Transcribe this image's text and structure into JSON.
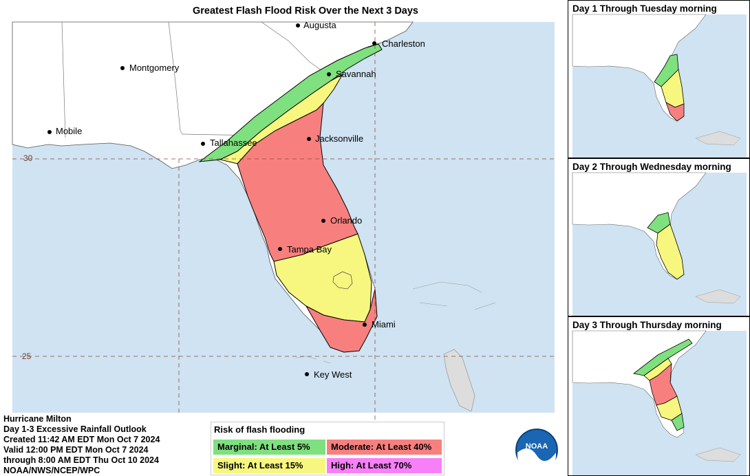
{
  "main_map": {
    "title": "Greatest Flash Flood Risk Over the Next 3 Days",
    "cities": [
      {
        "name": "Augusta"
      },
      {
        "name": "Charleston"
      },
      {
        "name": "Montgomery"
      },
      {
        "name": "Savannah"
      },
      {
        "name": "Mobile"
      },
      {
        "name": "Tallahassee"
      },
      {
        "name": "Jacksonville"
      },
      {
        "name": "Orlando"
      },
      {
        "name": "Tampa Bay"
      },
      {
        "name": "Miami"
      },
      {
        "name": "Key West"
      }
    ],
    "lat_labels": [
      "30",
      "25"
    ]
  },
  "info": {
    "line1": "Hurricane Milton",
    "line2": "Day 1-3 Excessive Rainfall Outlook",
    "line3": "Created 11:42 AM EDT Mon Oct 7 2024",
    "line4": "Valid 12:00 PM EDT Mon Oct 7 2024",
    "line5": "through 8:00 AM EDT Thu Oct 10 2024",
    "line6": "NOAA/NWS/NCEP/WPC"
  },
  "legend": {
    "title": "Risk of flash flooding",
    "marginal": "Marginal: At Least 5%",
    "moderate": "Moderate: At Least 40%",
    "slight": "Slight: At Least 15%",
    "high": "High: At Least 70%",
    "colors": {
      "marginal": "#7fe07f",
      "slight": "#f7f77f",
      "moderate": "#f7807f",
      "high": "#f77ff7",
      "ocean": "#cfe3f2",
      "land": "#ffffff"
    }
  },
  "logo": "NOAA",
  "side_panels": [
    {
      "title": "Day 1 Through Tuesday morning"
    },
    {
      "title": "Day 2 Through Wednesday morning"
    },
    {
      "title": "Day 3 Through Thursday morning"
    }
  ]
}
